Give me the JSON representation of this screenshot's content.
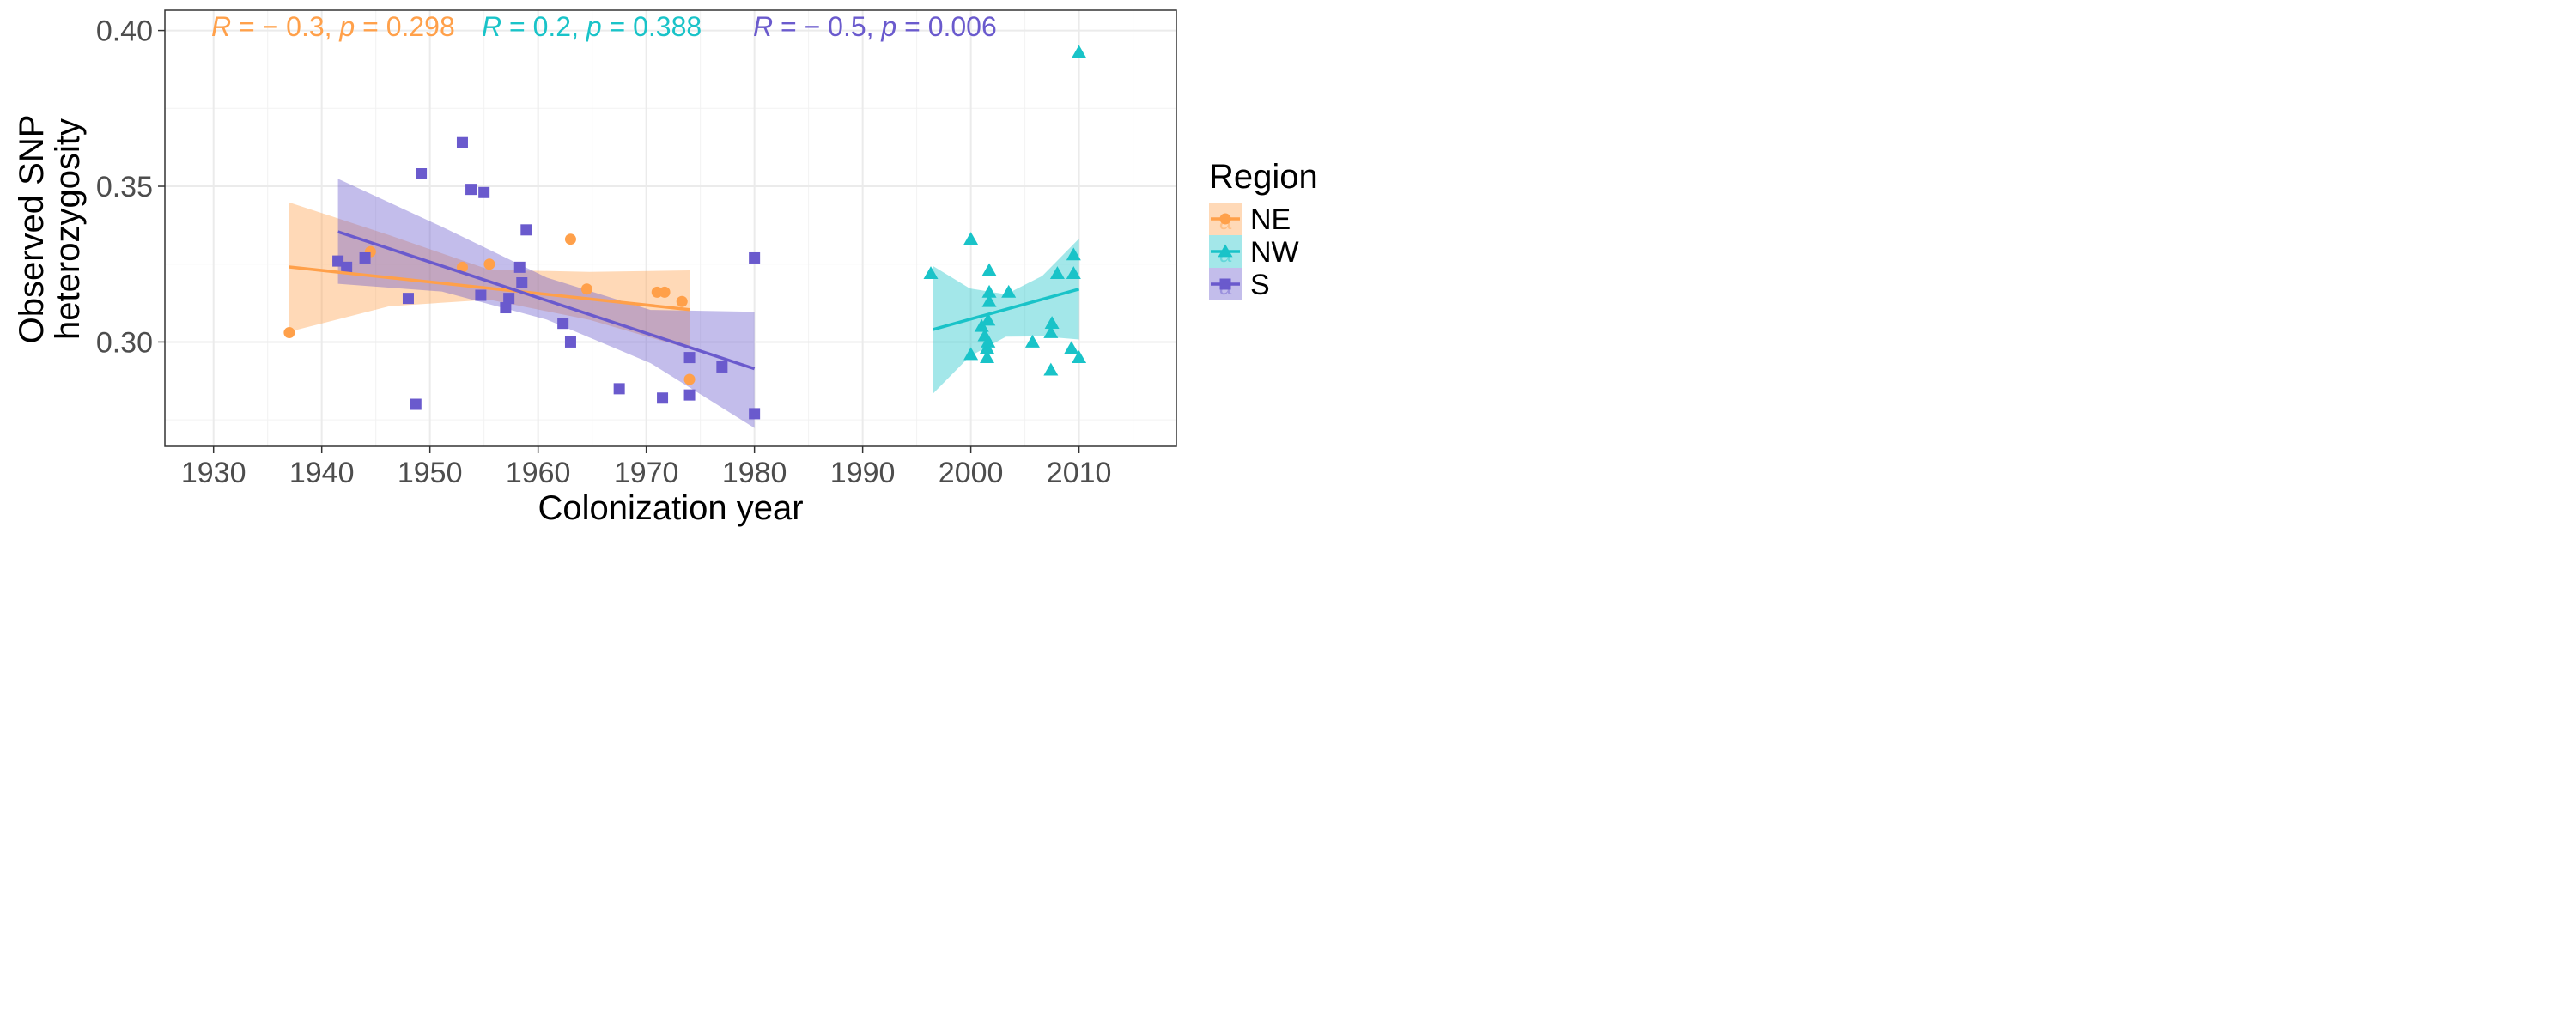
{
  "chart_data": {
    "type": "scatter",
    "xlabel": "Colonization year",
    "ylabel_lines": [
      "Observed SNP",
      "heterozygosity"
    ],
    "xlim": [
      1925.5,
      2019
    ],
    "ylim": [
      0.2665,
      0.4065
    ],
    "x_ticks": [
      1930,
      1940,
      1950,
      1960,
      1970,
      1980,
      1990,
      2000,
      2010
    ],
    "y_ticks": [
      0.3,
      0.35,
      0.4
    ],
    "y_tick_labels": [
      "0.30",
      "0.35",
      "0.40"
    ],
    "grid": true,
    "legend": {
      "title": "Region",
      "placement": "right"
    },
    "series": [
      {
        "name": "NE",
        "color": "#FFA04A",
        "marker": "circle",
        "points": [
          [
            1937.0,
            0.303
          ],
          [
            1941.5,
            0.326
          ],
          [
            1944.5,
            0.329
          ],
          [
            1953.0,
            0.324
          ],
          [
            1955.5,
            0.325
          ],
          [
            1963.0,
            0.333
          ],
          [
            1964.5,
            0.317
          ],
          [
            1971.0,
            0.316
          ],
          [
            1971.7,
            0.316
          ],
          [
            1973.3,
            0.313
          ],
          [
            1974.0,
            0.288
          ]
        ],
        "fit": {
          "x": [
            1937.0,
            1974.0
          ],
          "y": [
            0.3241,
            0.3104
          ]
        },
        "ci": {
          "x": [
            1937.0,
            1946.25,
            1955.5,
            1964.75,
            1974.0
          ],
          "lower": [
            0.3033,
            0.3115,
            0.3136,
            0.3071,
            0.2978
          ],
          "upper": [
            0.3448,
            0.3343,
            0.3232,
            0.3225,
            0.323
          ]
        },
        "stat": {
          "R": "− 0.3",
          "p": "0.298"
        }
      },
      {
        "name": "NW",
        "color": "#19C3C8",
        "marker": "triangle",
        "points": [
          [
            1996.3,
            0.322
          ],
          [
            2000.0,
            0.333
          ],
          [
            2000.0,
            0.296
          ],
          [
            2001.0,
            0.305
          ],
          [
            2001.3,
            0.302
          ],
          [
            2001.5,
            0.295
          ],
          [
            2001.5,
            0.298
          ],
          [
            2001.6,
            0.3
          ],
          [
            2001.6,
            0.307
          ],
          [
            2001.7,
            0.313
          ],
          [
            2001.7,
            0.316
          ],
          [
            2001.7,
            0.323
          ],
          [
            2003.5,
            0.316
          ],
          [
            2005.7,
            0.3
          ],
          [
            2007.4,
            0.291
          ],
          [
            2007.4,
            0.303
          ],
          [
            2007.5,
            0.306
          ],
          [
            2008.0,
            0.322
          ],
          [
            2009.3,
            0.298
          ],
          [
            2009.5,
            0.322
          ],
          [
            2009.5,
            0.328
          ],
          [
            2010.0,
            0.295
          ],
          [
            2010.0,
            0.393
          ]
        ],
        "fit": {
          "x": [
            1996.5,
            2010.0
          ],
          "y": [
            0.304,
            0.317
          ]
        },
        "ci": {
          "x": [
            1996.5,
            1999.9,
            2003.25,
            2006.6,
            2010.0
          ],
          "lower": [
            0.2834,
            0.2954,
            0.3017,
            0.3018,
            0.3008
          ],
          "upper": [
            0.3244,
            0.3172,
            0.3153,
            0.3212,
            0.3332
          ]
        },
        "stat": {
          "R": "0.2",
          "p": "0.388"
        }
      },
      {
        "name": "S",
        "color": "#6A5ACD",
        "marker": "square",
        "points": [
          [
            1941.5,
            0.326
          ],
          [
            1942.3,
            0.324
          ],
          [
            1944.0,
            0.327
          ],
          [
            1948.0,
            0.314
          ],
          [
            1948.7,
            0.28
          ],
          [
            1949.2,
            0.354
          ],
          [
            1953.0,
            0.364
          ],
          [
            1953.8,
            0.349
          ],
          [
            1954.7,
            0.315
          ],
          [
            1955.0,
            0.348
          ],
          [
            1957.0,
            0.311
          ],
          [
            1957.3,
            0.314
          ],
          [
            1958.3,
            0.324
          ],
          [
            1958.5,
            0.319
          ],
          [
            1958.9,
            0.336
          ],
          [
            1962.3,
            0.306
          ],
          [
            1963.0,
            0.3
          ],
          [
            1967.5,
            0.285
          ],
          [
            1971.5,
            0.282
          ],
          [
            1974.0,
            0.295
          ],
          [
            1974.0,
            0.283
          ],
          [
            1977.0,
            0.292
          ],
          [
            1980.0,
            0.277
          ],
          [
            1980.0,
            0.327
          ]
        ],
        "fit": {
          "x": [
            1941.5,
            1980.0
          ],
          "y": [
            0.3354,
            0.2914
          ]
        },
        "ci": {
          "x": [
            1941.5,
            1951.1,
            1960.8,
            1970.4,
            1980.0
          ],
          "lower": [
            0.3187,
            0.3162,
            0.3072,
            0.2932,
            0.2724
          ],
          "upper": [
            0.3524,
            0.337,
            0.3207,
            0.3103,
            0.3097
          ]
        },
        "stat": {
          "R": "− 0.5",
          "p": "0.006"
        }
      }
    ]
  }
}
